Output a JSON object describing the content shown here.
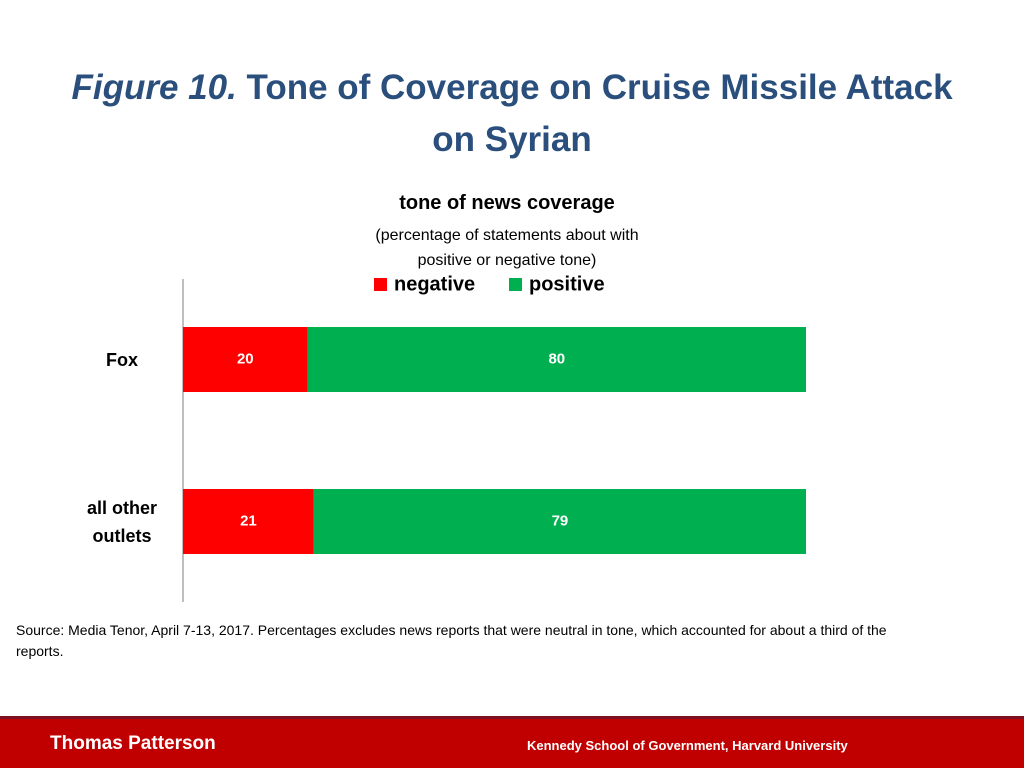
{
  "chart_data": {
    "type": "stacked-bar-horizontal",
    "figure_label": "Figure 10.",
    "title": "Tone of Coverage on Cruise Missile Attack on Syrian",
    "chart_title": "tone of news coverage",
    "subtitle": "(percentage of statements about with positive or negative tone)",
    "categories": [
      "Fox",
      "all other outlets"
    ],
    "series": [
      {
        "name": "negative",
        "color": "#ff0000",
        "values": [
          20,
          21
        ]
      },
      {
        "name": "positive",
        "color": "#00b050",
        "values": [
          80,
          79
        ]
      }
    ],
    "xlim": [
      0,
      100
    ],
    "legend": "top",
    "source": "Source: Media Tenor, April 7-13, 2017. Percentages excludes news reports that were neutral in tone, which accounted for about a third of the reports."
  },
  "footer": {
    "author": "Thomas Patterson",
    "institution": "Kennedy School of Government, Harvard University"
  }
}
